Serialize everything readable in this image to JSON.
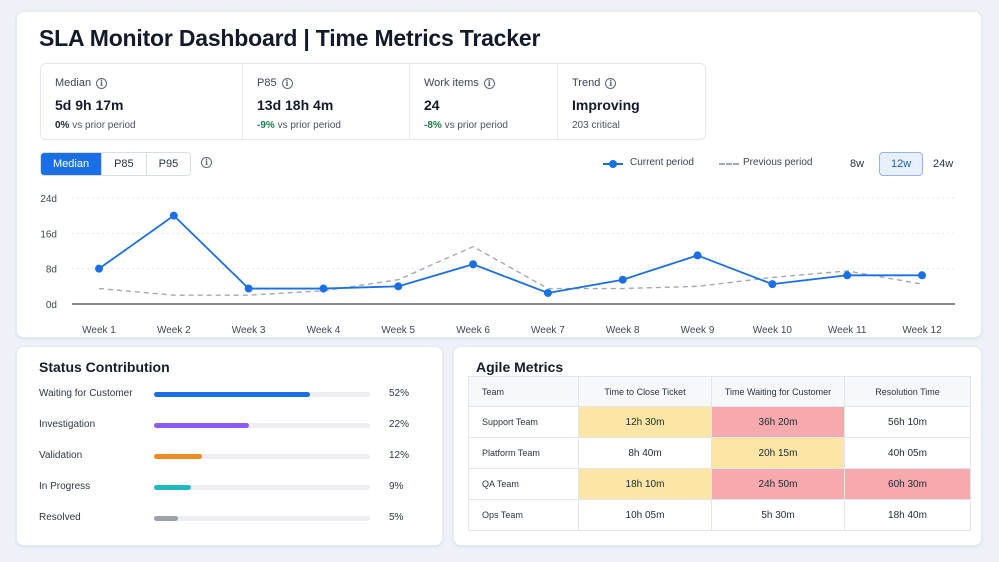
{
  "title": "SLA Monitor Dashboard | Time Metrics Tracker",
  "metrics": [
    {
      "label": "Median",
      "value": "5d 9h 17m",
      "delta": "0%",
      "delta_suffix": "vs prior period",
      "tone": "neutral"
    },
    {
      "label": "P85",
      "value": "13d 18h 4m",
      "delta": "-9%",
      "delta_suffix": "vs prior period",
      "tone": "good"
    },
    {
      "label": "Work items",
      "value": "24",
      "delta": "-8%",
      "delta_suffix": "vs prior period",
      "tone": "good"
    },
    {
      "label": "Trend",
      "value": "Improving",
      "delta": "",
      "delta_suffix": "203 critical",
      "tone": "neutral"
    }
  ],
  "segmented": {
    "options": [
      "Median",
      "P85",
      "P95"
    ],
    "selected": "Median"
  },
  "legend": {
    "current": "Current period",
    "previous": "Previous period"
  },
  "ranges": {
    "options": [
      "8w",
      "12w",
      "24w"
    ],
    "selected": "12w"
  },
  "chart_data": {
    "type": "line",
    "categories": [
      "Week 1",
      "Week 2",
      "Week 3",
      "Week 4",
      "Week 5",
      "Week 6",
      "Week 7",
      "Week 8",
      "Week 9",
      "Week 10",
      "Week 11",
      "Week 12"
    ],
    "series": [
      {
        "name": "Current period",
        "values": [
          8,
          20,
          3.5,
          3.5,
          4,
          9,
          2.5,
          5.5,
          11,
          4.5,
          6.5,
          6.5
        ],
        "style": "solid",
        "markers": true,
        "color": "#1b6fe5"
      },
      {
        "name": "Previous period",
        "values": [
          3.5,
          2,
          2,
          3,
          5.5,
          13,
          3.5,
          3.5,
          4,
          6,
          7.5,
          4.5
        ],
        "style": "dashed",
        "markers": false,
        "color": "#a3a9b3"
      }
    ],
    "y_ticks": [
      "0d",
      "8d",
      "16d",
      "24d"
    ],
    "y_tick_values": [
      0,
      8,
      16,
      24
    ],
    "ylim": [
      0,
      24
    ],
    "grid": true,
    "xlabel": "",
    "ylabel": ""
  },
  "status": {
    "title": "Status Contribution",
    "items": [
      {
        "name": "Waiting for Customer",
        "pct": "52%",
        "value": 0.72,
        "color": "#1b6fe5"
      },
      {
        "name": "Investigation",
        "pct": "22%",
        "value": 0.44,
        "color": "#8b5cf6"
      },
      {
        "name": "Validation",
        "pct": "12%",
        "value": 0.22,
        "color": "#f08a24"
      },
      {
        "name": "In Progress",
        "pct": "9%",
        "value": 0.17,
        "color": "#1fb9c1"
      },
      {
        "name": "Resolved",
        "pct": "5%",
        "value": 0.11,
        "color": "#9aa1ad"
      }
    ]
  },
  "agile": {
    "title": "Agile Metrics",
    "columns": [
      "Team",
      "Time to Close Ticket",
      "Time Waiting for Customer",
      "Resolution Time"
    ],
    "rows": [
      {
        "team": "Support Team",
        "cells": [
          {
            "v": "12h 30m",
            "level": "warn"
          },
          {
            "v": "36h 20m",
            "level": "bad"
          },
          {
            "v": "56h 10m",
            "level": "ok"
          }
        ]
      },
      {
        "team": "Platform Team",
        "cells": [
          {
            "v": "8h 40m",
            "level": "ok"
          },
          {
            "v": "20h 15m",
            "level": "warn"
          },
          {
            "v": "40h 05m",
            "level": "ok"
          }
        ]
      },
      {
        "team": "QA Team",
        "cells": [
          {
            "v": "18h 10m",
            "level": "warn"
          },
          {
            "v": "24h 50m",
            "level": "bad"
          },
          {
            "v": "60h 30m",
            "level": "bad"
          }
        ]
      },
      {
        "team": "Ops Team",
        "cells": [
          {
            "v": "10h 05m",
            "level": "ok"
          },
          {
            "v": "5h 30m",
            "level": "ok"
          },
          {
            "v": "18h 40m",
            "level": "ok"
          }
        ]
      }
    ],
    "level_colors": {
      "ok": "#ffffff",
      "warn": "#fbe6a6",
      "bad": "#f6aaae"
    }
  }
}
